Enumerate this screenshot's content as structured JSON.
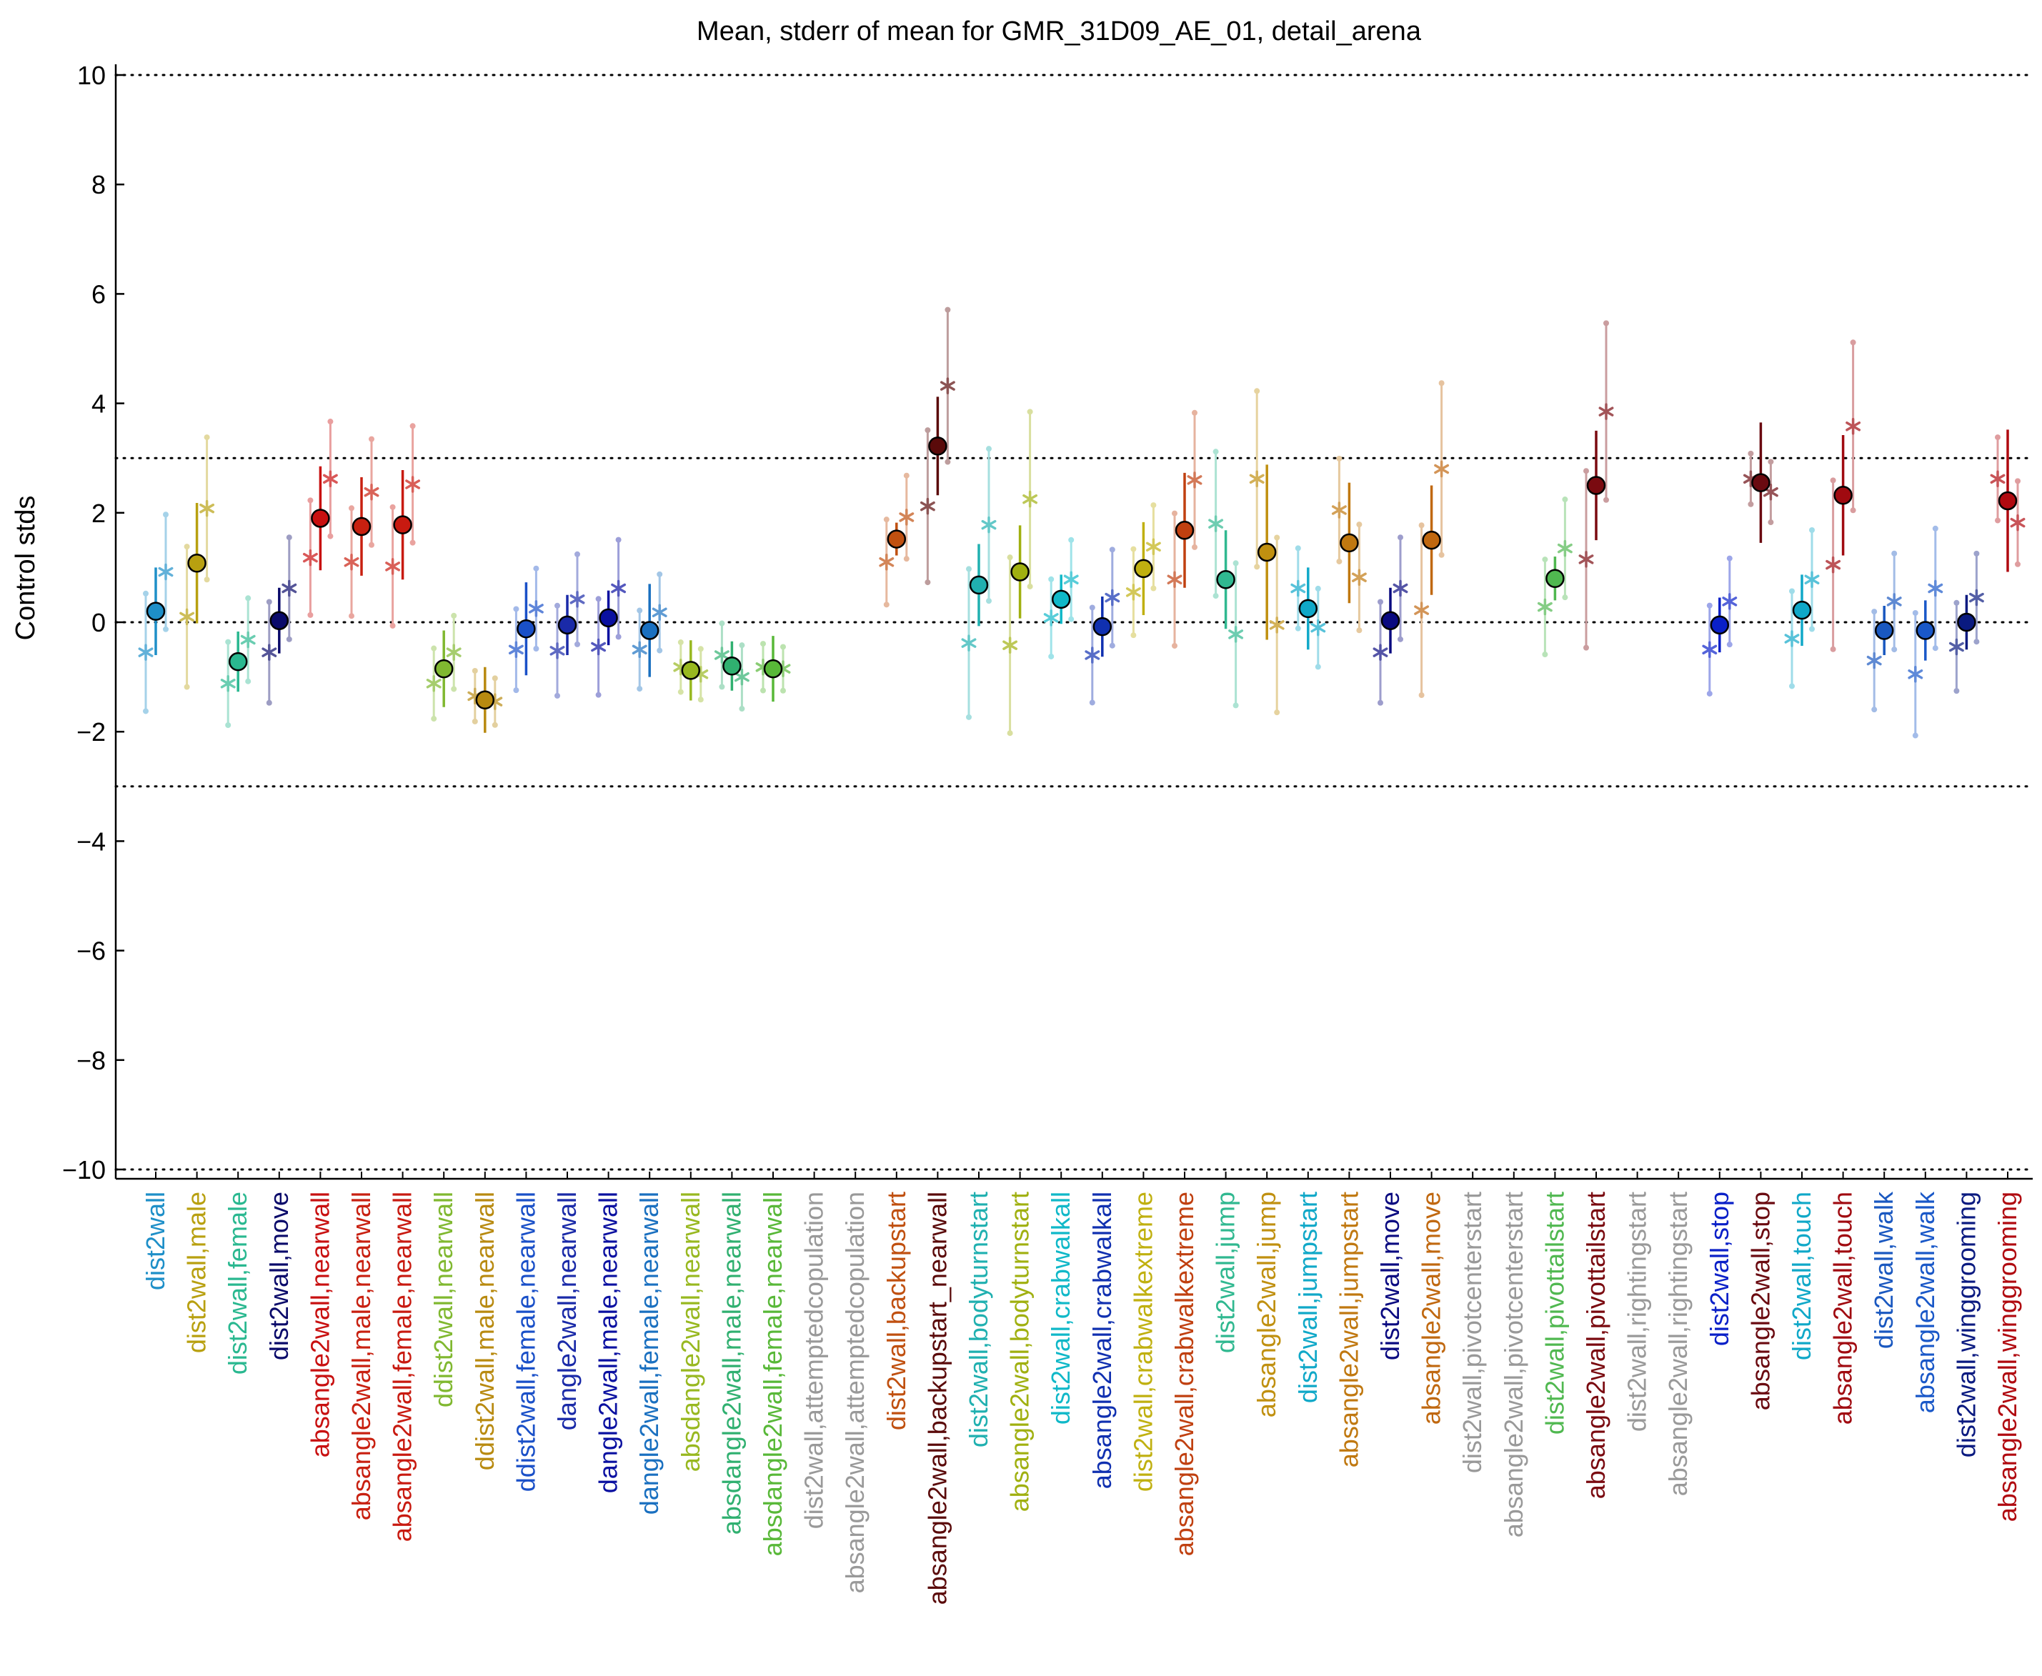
{
  "chart_data": {
    "type": "scatter",
    "title": "Mean, stderr of mean for GMR_31D09_AE_01, detail_arena",
    "xlabel": "",
    "ylabel": "Control stds",
    "ylim": [
      -10.2,
      10.2
    ],
    "yticks": [
      10,
      8,
      6,
      4,
      2,
      0,
      -2,
      -4,
      -6,
      -8,
      -10
    ],
    "ytick_labels": [
      "10",
      "8",
      "6",
      "4",
      "2",
      "0",
      "−2",
      "−4",
      "−6",
      "−8",
      "−10"
    ],
    "reference_lines": [
      10,
      3,
      0,
      -3,
      -10
    ],
    "grid": false,
    "legend": "none",
    "marker_legend": "circle = mean with stderr bar; asterisks = individual comparisons",
    "categories": [
      {
        "label": "dist2wall",
        "color": "#1e8fc8",
        "mean": 0.2,
        "se": 0.8,
        "stars": [
          -0.55,
          0.92
        ]
      },
      {
        "label": "dist2wall,male",
        "color": "#b8a010",
        "mean": 1.08,
        "se": 1.1,
        "stars": [
          0.1,
          2.08
        ]
      },
      {
        "label": "dist2wall,female",
        "color": "#2ab890",
        "mean": -0.72,
        "se": 0.55,
        "stars": [
          -1.12,
          -0.32
        ]
      },
      {
        "label": "dist2wall,move",
        "color": "#0a0a6a",
        "mean": 0.03,
        "se": 0.6,
        "stars": [
          -0.55,
          0.62
        ]
      },
      {
        "label": "absangle2wall,nearwall",
        "color": "#c81010",
        "mean": 1.9,
        "se": 0.95,
        "stars": [
          1.18,
          2.62
        ]
      },
      {
        "label": "absangle2wall,male,nearwall",
        "color": "#c82010",
        "mean": 1.75,
        "se": 0.9,
        "stars": [
          1.1,
          2.38
        ]
      },
      {
        "label": "absangle2wall,female,nearwall",
        "color": "#c81a10",
        "mean": 1.78,
        "se": 1.0,
        "stars": [
          1.02,
          2.52
        ]
      },
      {
        "label": "ddist2wall,nearwall",
        "color": "#80b830",
        "mean": -0.85,
        "se": 0.7,
        "stars": [
          -1.12,
          -0.55
        ]
      },
      {
        "label": "ddist2wall,male,nearwall",
        "color": "#b88a10",
        "mean": -1.42,
        "se": 0.6,
        "stars": [
          -1.35,
          -1.45
        ]
      },
      {
        "label": "ddist2wall,female,nearwall",
        "color": "#1a50c8",
        "mean": -0.12,
        "se": 0.85,
        "stars": [
          -0.5,
          0.25
        ]
      },
      {
        "label": "dangle2wall,nearwall",
        "color": "#1a2aa8",
        "mean": -0.05,
        "se": 0.55,
        "stars": [
          -0.52,
          0.42
        ]
      },
      {
        "label": "dangle2wall,male,nearwall",
        "color": "#0a10a0",
        "mean": 0.08,
        "se": 0.5,
        "stars": [
          -0.45,
          0.62
        ]
      },
      {
        "label": "dangle2wall,female,nearwall",
        "color": "#1a70c0",
        "mean": -0.15,
        "se": 0.85,
        "stars": [
          -0.5,
          0.18
        ]
      },
      {
        "label": "absdangle2wall,nearwall",
        "color": "#98b820",
        "mean": -0.88,
        "se": 0.55,
        "stars": [
          -0.82,
          -0.95
        ]
      },
      {
        "label": "absdangle2wall,male,nearwall",
        "color": "#30b070",
        "mean": -0.8,
        "se": 0.45,
        "stars": [
          -0.6,
          -1.0
        ]
      },
      {
        "label": "absdangle2wall,female,nearwall",
        "color": "#58b838",
        "mean": -0.85,
        "se": 0.6,
        "stars": [
          -0.82,
          -0.85
        ]
      },
      {
        "label": "dist2wall,attemptedcopulation",
        "color": "#999999",
        "mean": null,
        "se": null,
        "stars": []
      },
      {
        "label": "absangle2wall,attemptedcopulation",
        "color": "#999999",
        "mean": null,
        "se": null,
        "stars": []
      },
      {
        "label": "dist2wall,backupstart",
        "color": "#c05010",
        "mean": 1.52,
        "se": 0.3,
        "stars": [
          1.1,
          1.92
        ]
      },
      {
        "label": "absangle2wall,backupstart_nearwall",
        "color": "#5a0a0a",
        "mean": 3.22,
        "se": 0.9,
        "stars": [
          2.12,
          4.32
        ]
      },
      {
        "label": "dist2wall,bodyturnstart",
        "color": "#20b0b0",
        "mean": 0.68,
        "se": 0.75,
        "stars": [
          -0.38,
          1.78
        ]
      },
      {
        "label": "absangle2wall,bodyturnstart",
        "color": "#a0b010",
        "mean": 0.92,
        "se": 0.85,
        "stars": [
          -0.42,
          2.25
        ]
      },
      {
        "label": "dist2wall,crabwalkall",
        "color": "#10b8c8",
        "mean": 0.42,
        "se": 0.45,
        "stars": [
          0.08,
          0.78
        ]
      },
      {
        "label": "absangle2wall,crabwalkall",
        "color": "#1030b0",
        "mean": -0.08,
        "se": 0.55,
        "stars": [
          -0.6,
          0.45
        ]
      },
      {
        "label": "dist2wall,crabwalkextreme",
        "color": "#c0b010",
        "mean": 0.98,
        "se": 0.85,
        "stars": [
          0.55,
          1.38
        ]
      },
      {
        "label": "absangle2wall,crabwalkextreme",
        "color": "#c04010",
        "mean": 1.68,
        "se": 1.05,
        "stars": [
          0.78,
          2.6
        ]
      },
      {
        "label": "dist2wall,jump",
        "color": "#30b890",
        "mean": 0.78,
        "se": 0.9,
        "stars": [
          1.8,
          -0.22
        ]
      },
      {
        "label": "absangle2wall,jump",
        "color": "#c09010",
        "mean": 1.28,
        "se": 1.6,
        "stars": [
          2.62,
          -0.05
        ]
      },
      {
        "label": "dist2wall,jumpstart",
        "color": "#10a8c8",
        "mean": 0.25,
        "se": 0.75,
        "stars": [
          0.62,
          -0.1
        ]
      },
      {
        "label": "absangle2wall,jumpstart",
        "color": "#c07810",
        "mean": 1.45,
        "se": 1.1,
        "stars": [
          2.05,
          0.82
        ]
      },
      {
        "label": "dist2wall,move",
        "color": "#0a0a80",
        "mean": 0.03,
        "se": 0.6,
        "stars": [
          -0.55,
          0.62
        ]
      },
      {
        "label": "absangle2wall,move",
        "color": "#c06810",
        "mean": 1.5,
        "se": 1.0,
        "stars": [
          0.22,
          2.8
        ]
      },
      {
        "label": "dist2wall,pivotcenterstart",
        "color": "#999999",
        "mean": null,
        "se": null,
        "stars": []
      },
      {
        "label": "absangle2wall,pivotcenterstart",
        "color": "#999999",
        "mean": null,
        "se": null,
        "stars": []
      },
      {
        "label": "dist2wall,pivottailstart",
        "color": "#50b850",
        "mean": 0.8,
        "se": 0.4,
        "stars": [
          0.28,
          1.35
        ]
      },
      {
        "label": "absangle2wall,pivottailstart",
        "color": "#7a0a10",
        "mean": 2.5,
        "se": 1.0,
        "stars": [
          1.15,
          3.85
        ]
      },
      {
        "label": "dist2wall,rightingstart",
        "color": "#999999",
        "mean": null,
        "se": null,
        "stars": []
      },
      {
        "label": "absangle2wall,rightingstart",
        "color": "#999999",
        "mean": null,
        "se": null,
        "stars": []
      },
      {
        "label": "dist2wall,stop",
        "color": "#0a20c8",
        "mean": -0.05,
        "se": 0.5,
        "stars": [
          -0.5,
          0.38
        ]
      },
      {
        "label": "absangle2wall,stop",
        "color": "#6a0a10",
        "mean": 2.55,
        "se": 1.1,
        "stars": [
          2.62,
          2.38
        ]
      },
      {
        "label": "dist2wall,touch",
        "color": "#10a8c8",
        "mean": 0.22,
        "se": 0.65,
        "stars": [
          -0.3,
          0.78
        ]
      },
      {
        "label": "absangle2wall,touch",
        "color": "#a00a10",
        "mean": 2.32,
        "se": 1.1,
        "stars": [
          1.05,
          3.58
        ]
      },
      {
        "label": "dist2wall,walk",
        "color": "#1a58c0",
        "mean": -0.15,
        "se": 0.45,
        "stars": [
          -0.7,
          0.38
        ]
      },
      {
        "label": "absangle2wall,walk",
        "color": "#1a58c8",
        "mean": -0.15,
        "se": 0.55,
        "stars": [
          -0.95,
          0.62
        ]
      },
      {
        "label": "dist2wall,winggrooming",
        "color": "#0a1a80",
        "mean": 0.0,
        "se": 0.5,
        "stars": [
          -0.45,
          0.45
        ]
      },
      {
        "label": "absangle2wall,winggrooming",
        "color": "#b00a10",
        "mean": 2.22,
        "se": 1.3,
        "stars": [
          2.62,
          1.82
        ]
      }
    ]
  }
}
